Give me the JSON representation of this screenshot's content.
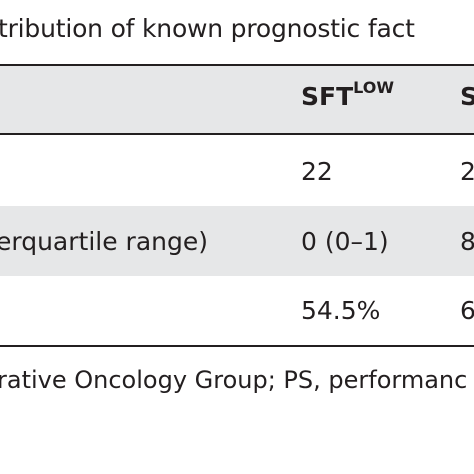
{
  "caption": "tribution of known prognostic fact",
  "header": {
    "col1_base": "SFT",
    "col1_sup": "LOW",
    "col2_partial": "S"
  },
  "rows": [
    {
      "label": "",
      "col1": "22",
      "col2_partial": "2"
    },
    {
      "label": "erquartile range)",
      "col1": "0 (0–1)",
      "col2_partial": "8"
    },
    {
      "label": "",
      "col1": "54.5%",
      "col2_partial": "6"
    }
  ],
  "footnote": "rative Oncology Group; PS, performanc"
}
